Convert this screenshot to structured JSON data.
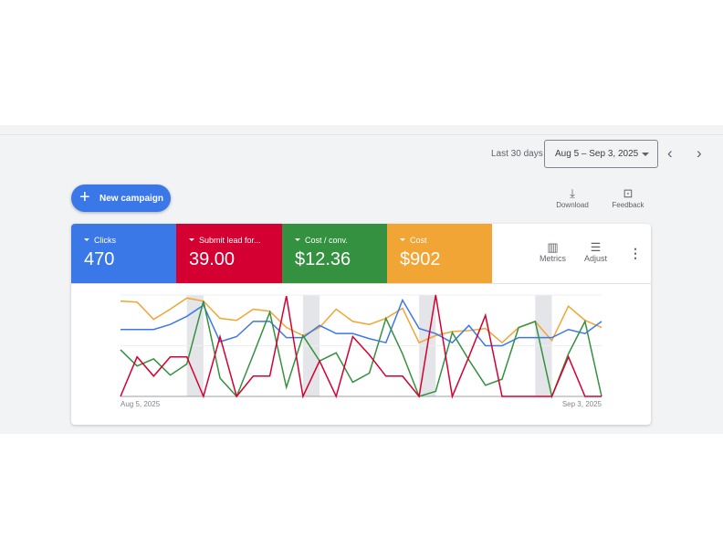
{
  "toolbar": {
    "date_preset": "Last 30 days",
    "date_range": "Aug 5 – Sep 3, 2025",
    "prev": "‹",
    "next": "›"
  },
  "actions": {
    "new_campaign": "New campaign",
    "download": "Download",
    "feedback": "Feedback"
  },
  "scorecards": [
    {
      "label": "Clicks",
      "value": "470",
      "color": "#3b78e7"
    },
    {
      "label": "Submit lead for...",
      "value": "39.00",
      "color": "#d50032"
    },
    {
      "label": "Cost / conv.",
      "value": "$12.36",
      "color": "#34913f"
    },
    {
      "label": "Cost",
      "value": "$902",
      "color": "#f0a534"
    }
  ],
  "card_tools": {
    "metrics": "Metrics",
    "adjust": "Adjust"
  },
  "chart_data": {
    "type": "line",
    "x_start_label": "Aug 5, 2025",
    "x_end_label": "Sep 3, 2025",
    "x": [
      "Aug 5",
      "Aug 6",
      "Aug 7",
      "Aug 8",
      "Aug 9",
      "Aug 10",
      "Aug 11",
      "Aug 12",
      "Aug 13",
      "Aug 14",
      "Aug 15",
      "Aug 16",
      "Aug 17",
      "Aug 18",
      "Aug 19",
      "Aug 20",
      "Aug 21",
      "Aug 22",
      "Aug 23",
      "Aug 24",
      "Aug 25",
      "Aug 26",
      "Aug 27",
      "Aug 28",
      "Aug 29",
      "Aug 30",
      "Aug 31",
      "Sep 1",
      "Sep 2",
      "Sep 3"
    ],
    "weekend_shading": [
      [
        "Aug 9",
        "Aug 10"
      ],
      [
        "Aug 16",
        "Aug 17"
      ],
      [
        "Aug 23",
        "Aug 24"
      ],
      [
        "Aug 30",
        "Aug 31"
      ]
    ],
    "y_scale": "relative, 0–100 per series (no axis labels shown)",
    "grid": true,
    "series": [
      {
        "metric": "Cost",
        "color": "#f0a534",
        "values": [
          94,
          93,
          76,
          86,
          97,
          94,
          77,
          75,
          86,
          84,
          68,
          60,
          68,
          86,
          74,
          71,
          77,
          87,
          53,
          60,
          64,
          65,
          67,
          53,
          68,
          74,
          55,
          89,
          75,
          68
        ]
      },
      {
        "metric": "Clicks",
        "color": "#3b78e7",
        "values": [
          66,
          66,
          66,
          71,
          79,
          90,
          54,
          59,
          74,
          74,
          58,
          58,
          70,
          62,
          62,
          57,
          53,
          95,
          67,
          62,
          53,
          70,
          50,
          50,
          58,
          58,
          58,
          66,
          62,
          74
        ]
      },
      {
        "metric": "Cost / conv.",
        "color": "#34913f",
        "values": [
          46,
          30,
          37,
          21,
          32,
          94,
          18,
          0,
          41,
          83,
          9,
          60,
          35,
          43,
          14,
          23,
          77,
          42,
          0,
          5,
          63,
          36,
          11,
          17,
          68,
          74,
          0,
          42,
          74,
          0
        ]
      },
      {
        "metric": "Submit lead for...",
        "color": "#d50032",
        "values": [
          0,
          39,
          20,
          39,
          39,
          0,
          59,
          0,
          20,
          20,
          99,
          0,
          35,
          0,
          59,
          41,
          20,
          20,
          0,
          100,
          0,
          39,
          80,
          0,
          0,
          0,
          0,
          39,
          0,
          0
        ]
      }
    ]
  }
}
